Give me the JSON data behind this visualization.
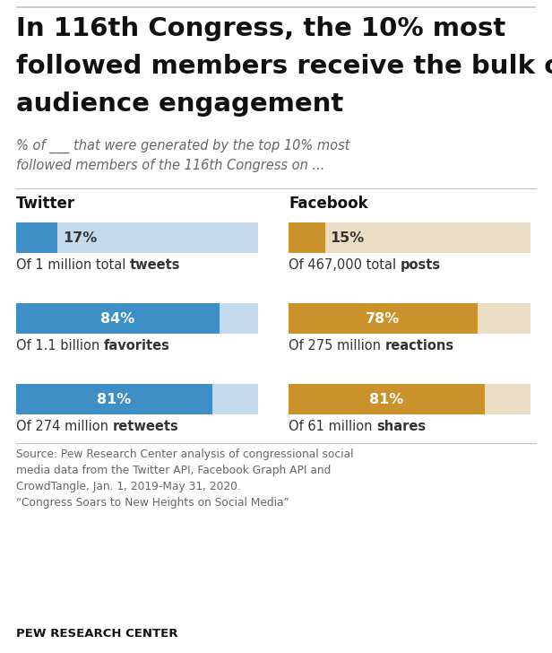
{
  "title_line1": "In 116th Congress, the 10% most",
  "title_line2": "followed members receive the bulk of",
  "title_line3": "audience engagement",
  "subtitle_line1": "% of ___ that were generated by the top 10% most",
  "subtitle_line2": "followed members of the 116th Congress on ...",
  "twitter_label": "Twitter",
  "facebook_label": "Facebook",
  "bars": [
    {
      "section": "twitter",
      "value": 17,
      "desc_normal": "Of 1 million total ",
      "desc_bold": "tweets",
      "bar_color": "#3d8fc6",
      "bg_color": "#c5d9ec",
      "text_color": "#333333"
    },
    {
      "section": "twitter",
      "value": 84,
      "desc_normal": "Of 1.1 billion ",
      "desc_bold": "favorites",
      "bar_color": "#3d8fc6",
      "bg_color": "#c5d9ec",
      "text_color": "#ffffff"
    },
    {
      "section": "twitter",
      "value": 81,
      "desc_normal": "Of 274 million ",
      "desc_bold": "retweets",
      "bar_color": "#3d8fc6",
      "bg_color": "#c5d9ec",
      "text_color": "#ffffff"
    },
    {
      "section": "facebook",
      "value": 15,
      "desc_normal": "Of 467,000 total ",
      "desc_bold": "posts",
      "bar_color": "#c9922a",
      "bg_color": "#ecdec4",
      "text_color": "#333333"
    },
    {
      "section": "facebook",
      "value": 78,
      "desc_normal": "Of 275 million ",
      "desc_bold": "reactions",
      "bar_color": "#c9922a",
      "bg_color": "#ecdec4",
      "text_color": "#ffffff"
    },
    {
      "section": "facebook",
      "value": 81,
      "desc_normal": "Of 61 million ",
      "desc_bold": "shares",
      "bar_color": "#c9922a",
      "bg_color": "#ecdec4",
      "text_color": "#ffffff"
    }
  ],
  "source_text": "Source: Pew Research Center analysis of congressional social\nmedia data from the Twitter API, Facebook Graph API and\nCrowdTangle, Jan. 1, 2019-May 31, 2020.\n“Congress Soars to New Heights on Social Media”",
  "footer": "PEW RESEARCH CENTER",
  "bg_color": "#ffffff",
  "top_border_color": "#c0c0c0",
  "divider_color": "#c0c0c0"
}
